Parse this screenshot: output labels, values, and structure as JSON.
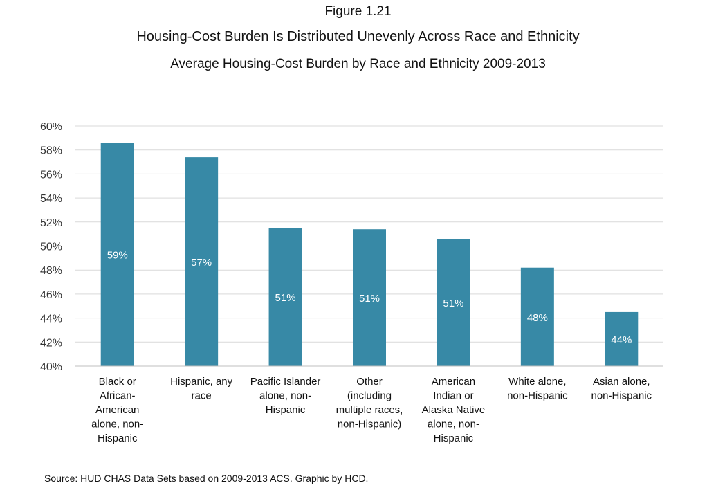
{
  "figure_label": "Figure 1.21",
  "chart_data": {
    "type": "bar",
    "title": "Housing-Cost Burden Is Distributed Unevenly Across Race and Ethnicity",
    "subtitle": "Average Housing-Cost Burden by Race and Ethnicity 2009-2013",
    "categories": [
      [
        "Black or",
        "African-",
        "American",
        "alone, non-",
        "Hispanic"
      ],
      [
        "Hispanic, any",
        "race"
      ],
      [
        "Pacific Islander",
        "alone, non-",
        "Hispanic"
      ],
      [
        "Other",
        "(including",
        "multiple races,",
        "non-Hispanic)"
      ],
      [
        "American",
        "Indian or",
        "Alaska Native",
        "alone, non-",
        "Hispanic"
      ],
      [
        "White alone,",
        "non-Hispanic"
      ],
      [
        "Asian alone,",
        "non-Hispanic"
      ]
    ],
    "values": [
      58.6,
      57.4,
      51.5,
      51.4,
      50.6,
      48.2,
      44.5
    ],
    "data_labels": [
      "59%",
      "57%",
      "51%",
      "51%",
      "51%",
      "48%",
      "44%"
    ],
    "ylim": [
      40,
      60
    ],
    "yticks": [
      40,
      42,
      44,
      46,
      48,
      50,
      52,
      54,
      56,
      58,
      60
    ],
    "ytick_labels": [
      "40%",
      "42%",
      "44%",
      "46%",
      "48%",
      "50%",
      "52%",
      "54%",
      "56%",
      "58%",
      "60%"
    ],
    "bar_color": "#3789a6",
    "label_color": "#ffffff",
    "grid": true
  },
  "source": "Source: HUD CHAS Data Sets based on 2009-2013 ACS. Graphic by HCD."
}
